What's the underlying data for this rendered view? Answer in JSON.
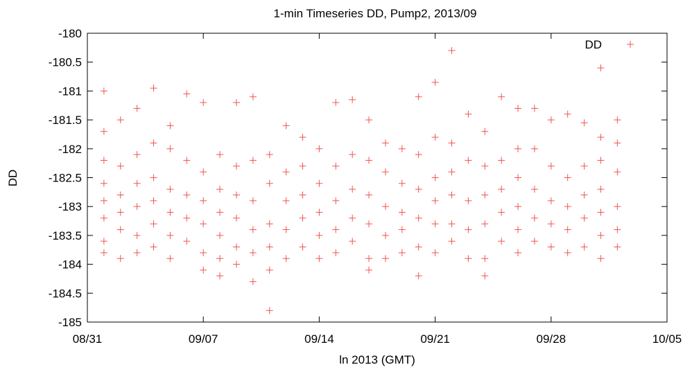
{
  "chart_data": {
    "type": "scatter",
    "title": "1-min Timeseries DD, Pump2, 2013/09",
    "xlabel": "ln 2013 (GMT)",
    "ylabel": "DD",
    "xlim": [
      "2013-08-31",
      "2013-10-05"
    ],
    "ylim": [
      -185,
      -180
    ],
    "x_ticks": [
      "08/31",
      "09/07",
      "09/14",
      "09/21",
      "09/28",
      "10/05"
    ],
    "y_ticks": [
      "-180",
      "-180.5",
      "-181",
      "-181.5",
      "-182",
      "-182.5",
      "-183",
      "-183.5",
      "-184",
      "-184.5",
      "-185"
    ],
    "grid": false,
    "legend": {
      "position": "top-right",
      "entries": [
        "DD"
      ]
    },
    "marker": "+",
    "color": "#ef5350",
    "series": [
      {
        "name": "DD",
        "points": [
          [
            "2013-09-01",
            -181.0
          ],
          [
            "2013-09-01",
            -181.7
          ],
          [
            "2013-09-01",
            -182.2
          ],
          [
            "2013-09-01",
            -182.6
          ],
          [
            "2013-09-01",
            -182.9
          ],
          [
            "2013-09-01",
            -183.2
          ],
          [
            "2013-09-01",
            -183.6
          ],
          [
            "2013-09-01",
            -183.8
          ],
          [
            "2013-09-02",
            -181.5
          ],
          [
            "2013-09-02",
            -182.3
          ],
          [
            "2013-09-02",
            -182.8
          ],
          [
            "2013-09-02",
            -183.1
          ],
          [
            "2013-09-02",
            -183.4
          ],
          [
            "2013-09-02",
            -183.9
          ],
          [
            "2013-09-03",
            -181.3
          ],
          [
            "2013-09-03",
            -182.1
          ],
          [
            "2013-09-03",
            -182.6
          ],
          [
            "2013-09-03",
            -183.0
          ],
          [
            "2013-09-03",
            -183.5
          ],
          [
            "2013-09-03",
            -183.8
          ],
          [
            "2013-09-04",
            -180.95
          ],
          [
            "2013-09-04",
            -181.9
          ],
          [
            "2013-09-04",
            -182.5
          ],
          [
            "2013-09-04",
            -182.9
          ],
          [
            "2013-09-04",
            -183.3
          ],
          [
            "2013-09-04",
            -183.7
          ],
          [
            "2013-09-05",
            -181.6
          ],
          [
            "2013-09-05",
            -182.0
          ],
          [
            "2013-09-05",
            -182.7
          ],
          [
            "2013-09-05",
            -183.1
          ],
          [
            "2013-09-05",
            -183.5
          ],
          [
            "2013-09-05",
            -183.9
          ],
          [
            "2013-09-06",
            -181.05
          ],
          [
            "2013-09-06",
            -182.2
          ],
          [
            "2013-09-06",
            -182.8
          ],
          [
            "2013-09-06",
            -183.2
          ],
          [
            "2013-09-06",
            -183.6
          ],
          [
            "2013-09-07",
            -181.2
          ],
          [
            "2013-09-07",
            -182.4
          ],
          [
            "2013-09-07",
            -182.9
          ],
          [
            "2013-09-07",
            -183.3
          ],
          [
            "2013-09-07",
            -183.8
          ],
          [
            "2013-09-07",
            -184.1
          ],
          [
            "2013-09-08",
            -182.1
          ],
          [
            "2013-09-08",
            -182.7
          ],
          [
            "2013-09-08",
            -183.1
          ],
          [
            "2013-09-08",
            -183.5
          ],
          [
            "2013-09-08",
            -183.9
          ],
          [
            "2013-09-08",
            -184.2
          ],
          [
            "2013-09-09",
            -181.2
          ],
          [
            "2013-09-09",
            -182.3
          ],
          [
            "2013-09-09",
            -182.8
          ],
          [
            "2013-09-09",
            -183.2
          ],
          [
            "2013-09-09",
            -183.7
          ],
          [
            "2013-09-09",
            -184.0
          ],
          [
            "2013-09-10",
            -181.1
          ],
          [
            "2013-09-10",
            -182.2
          ],
          [
            "2013-09-10",
            -182.9
          ],
          [
            "2013-09-10",
            -183.4
          ],
          [
            "2013-09-10",
            -183.8
          ],
          [
            "2013-09-10",
            -184.3
          ],
          [
            "2013-09-11",
            -182.1
          ],
          [
            "2013-09-11",
            -182.6
          ],
          [
            "2013-09-11",
            -183.3
          ],
          [
            "2013-09-11",
            -183.7
          ],
          [
            "2013-09-11",
            -184.1
          ],
          [
            "2013-09-11",
            -184.8
          ],
          [
            "2013-09-12",
            -181.6
          ],
          [
            "2013-09-12",
            -182.4
          ],
          [
            "2013-09-12",
            -182.9
          ],
          [
            "2013-09-12",
            -183.4
          ],
          [
            "2013-09-12",
            -183.9
          ],
          [
            "2013-09-13",
            -181.8
          ],
          [
            "2013-09-13",
            -182.3
          ],
          [
            "2013-09-13",
            -182.8
          ],
          [
            "2013-09-13",
            -183.2
          ],
          [
            "2013-09-13",
            -183.7
          ],
          [
            "2013-09-14",
            -182.0
          ],
          [
            "2013-09-14",
            -182.6
          ],
          [
            "2013-09-14",
            -183.1
          ],
          [
            "2013-09-14",
            -183.5
          ],
          [
            "2013-09-14",
            -183.9
          ],
          [
            "2013-09-15",
            -181.2
          ],
          [
            "2013-09-15",
            -182.3
          ],
          [
            "2013-09-15",
            -182.9
          ],
          [
            "2013-09-15",
            -183.4
          ],
          [
            "2013-09-15",
            -183.8
          ],
          [
            "2013-09-16",
            -181.15
          ],
          [
            "2013-09-16",
            -182.1
          ],
          [
            "2013-09-16",
            -182.7
          ],
          [
            "2013-09-16",
            -183.2
          ],
          [
            "2013-09-16",
            -183.6
          ],
          [
            "2013-09-17",
            -181.5
          ],
          [
            "2013-09-17",
            -182.2
          ],
          [
            "2013-09-17",
            -182.8
          ],
          [
            "2013-09-17",
            -183.3
          ],
          [
            "2013-09-17",
            -183.9
          ],
          [
            "2013-09-17",
            -184.1
          ],
          [
            "2013-09-18",
            -181.9
          ],
          [
            "2013-09-18",
            -182.4
          ],
          [
            "2013-09-18",
            -183.0
          ],
          [
            "2013-09-18",
            -183.5
          ],
          [
            "2013-09-18",
            -183.9
          ],
          [
            "2013-09-19",
            -182.0
          ],
          [
            "2013-09-19",
            -182.6
          ],
          [
            "2013-09-19",
            -183.1
          ],
          [
            "2013-09-19",
            -183.4
          ],
          [
            "2013-09-19",
            -183.8
          ],
          [
            "2013-09-20",
            -181.1
          ],
          [
            "2013-09-20",
            -182.1
          ],
          [
            "2013-09-20",
            -182.7
          ],
          [
            "2013-09-20",
            -183.2
          ],
          [
            "2013-09-20",
            -183.7
          ],
          [
            "2013-09-20",
            -184.2
          ],
          [
            "2013-09-21",
            -180.85
          ],
          [
            "2013-09-21",
            -181.8
          ],
          [
            "2013-09-21",
            -182.5
          ],
          [
            "2013-09-21",
            -182.9
          ],
          [
            "2013-09-21",
            -183.3
          ],
          [
            "2013-09-21",
            -183.8
          ],
          [
            "2013-09-22",
            -180.3
          ],
          [
            "2013-09-22",
            -181.9
          ],
          [
            "2013-09-22",
            -182.4
          ],
          [
            "2013-09-22",
            -182.8
          ],
          [
            "2013-09-22",
            -183.3
          ],
          [
            "2013-09-22",
            -183.6
          ],
          [
            "2013-09-23",
            -181.4
          ],
          [
            "2013-09-23",
            -182.2
          ],
          [
            "2013-09-23",
            -182.9
          ],
          [
            "2013-09-23",
            -183.4
          ],
          [
            "2013-09-23",
            -183.9
          ],
          [
            "2013-09-24",
            -181.7
          ],
          [
            "2013-09-24",
            -182.3
          ],
          [
            "2013-09-24",
            -182.8
          ],
          [
            "2013-09-24",
            -183.3
          ],
          [
            "2013-09-24",
            -183.9
          ],
          [
            "2013-09-24",
            -184.2
          ],
          [
            "2013-09-25",
            -181.1
          ],
          [
            "2013-09-25",
            -182.2
          ],
          [
            "2013-09-25",
            -182.7
          ],
          [
            "2013-09-25",
            -183.1
          ],
          [
            "2013-09-25",
            -183.6
          ],
          [
            "2013-09-26",
            -181.3
          ],
          [
            "2013-09-26",
            -182.0
          ],
          [
            "2013-09-26",
            -182.5
          ],
          [
            "2013-09-26",
            -183.0
          ],
          [
            "2013-09-26",
            -183.4
          ],
          [
            "2013-09-26",
            -183.8
          ],
          [
            "2013-09-27",
            -181.3
          ],
          [
            "2013-09-27",
            -182.0
          ],
          [
            "2013-09-27",
            -182.7
          ],
          [
            "2013-09-27",
            -183.2
          ],
          [
            "2013-09-27",
            -183.6
          ],
          [
            "2013-09-28",
            -181.5
          ],
          [
            "2013-09-28",
            -182.3
          ],
          [
            "2013-09-28",
            -182.9
          ],
          [
            "2013-09-28",
            -183.3
          ],
          [
            "2013-09-28",
            -183.7
          ],
          [
            "2013-09-29",
            -181.4
          ],
          [
            "2013-09-29",
            -182.5
          ],
          [
            "2013-09-29",
            -183.0
          ],
          [
            "2013-09-29",
            -183.4
          ],
          [
            "2013-09-29",
            -183.8
          ],
          [
            "2013-09-30",
            -181.55
          ],
          [
            "2013-09-30",
            -182.3
          ],
          [
            "2013-09-30",
            -182.8
          ],
          [
            "2013-09-30",
            -183.2
          ],
          [
            "2013-09-30",
            -183.7
          ],
          [
            "2013-10-01",
            -180.6
          ],
          [
            "2013-10-01",
            -181.8
          ],
          [
            "2013-10-01",
            -182.2
          ],
          [
            "2013-10-01",
            -182.7
          ],
          [
            "2013-10-01",
            -183.1
          ],
          [
            "2013-10-01",
            -183.5
          ],
          [
            "2013-10-01",
            -183.9
          ],
          [
            "2013-10-02",
            -181.5
          ],
          [
            "2013-10-02",
            -181.9
          ],
          [
            "2013-10-02",
            -182.4
          ],
          [
            "2013-10-02",
            -183.0
          ],
          [
            "2013-10-02",
            -183.4
          ],
          [
            "2013-10-02",
            -183.7
          ]
        ]
      }
    ]
  }
}
